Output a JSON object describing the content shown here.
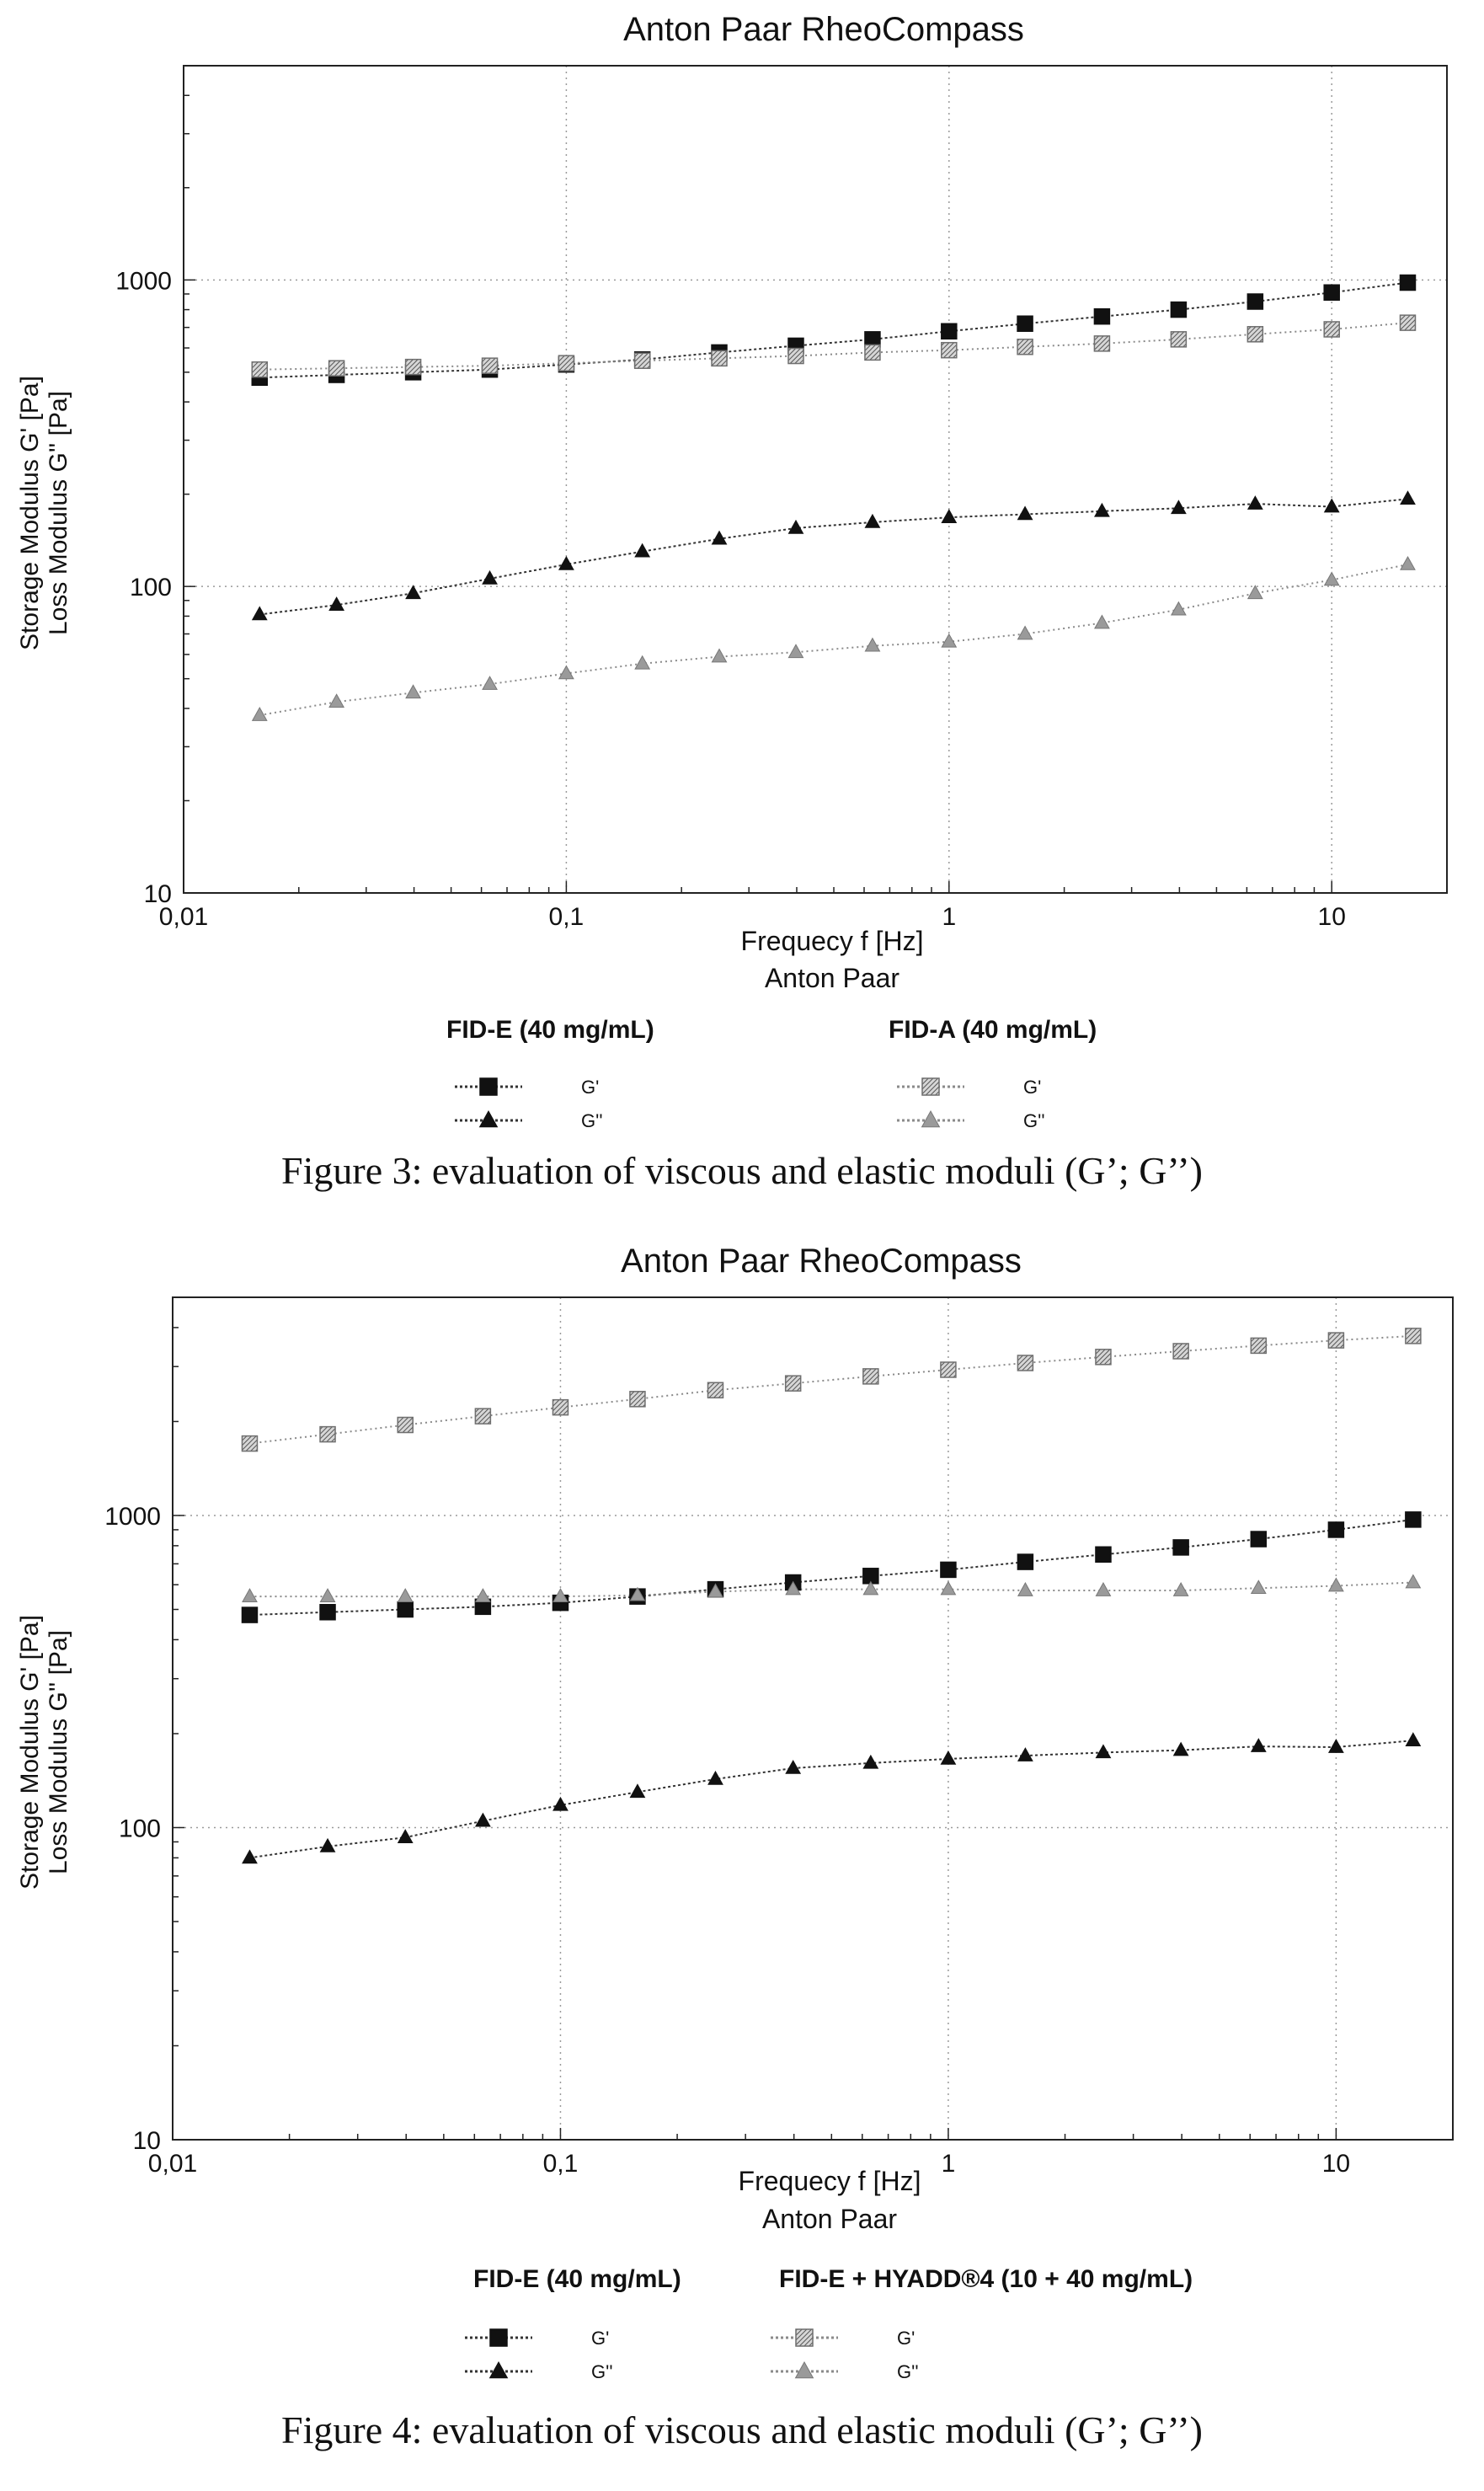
{
  "colors": {
    "fid_e": "#111111",
    "fid_a": "#8a8a8a",
    "fid_e_hyadd": "#8a8a8a",
    "grid": "#9a9a9a"
  },
  "chart_data": [
    {
      "type": "line",
      "title": "Anton Paar RheoCompass",
      "xlabel": "Frequecy f [Hz]",
      "xsublabel": "Anton Paar",
      "ylabel_line1": "Storage Modulus G' [Pa]",
      "ylabel_line2": "Loss Modulus G'' [Pa]",
      "xscale": "log",
      "yscale": "log",
      "xlim": [
        0.01,
        20
      ],
      "ylim": [
        10,
        5000
      ],
      "xticks": [
        {
          "value": 0.01,
          "label": "0,01"
        },
        {
          "value": 0.1,
          "label": "0,1"
        },
        {
          "value": 1,
          "label": "1"
        },
        {
          "value": 10,
          "label": "10"
        }
      ],
      "yticks": [
        {
          "value": 10,
          "label": "10"
        },
        {
          "value": 100,
          "label": "100"
        },
        {
          "value": 1000,
          "label": "1000"
        }
      ],
      "grid": true,
      "x": [
        0.0158,
        0.0251,
        0.0398,
        0.0631,
        0.1,
        0.158,
        0.251,
        0.398,
        0.631,
        1.0,
        1.58,
        2.51,
        3.98,
        6.31,
        10.0,
        15.8
      ],
      "series": [
        {
          "id": "fid-e-storage",
          "marker": "square",
          "style": "solid",
          "values": [
            480,
            490,
            500,
            510,
            530,
            550,
            580,
            610,
            640,
            680,
            720,
            760,
            800,
            850,
            910,
            980
          ]
        },
        {
          "id": "fid-e-loss",
          "marker": "triangle",
          "style": "solid",
          "values": [
            81,
            87,
            95,
            106,
            118,
            130,
            143,
            155,
            162,
            168,
            172,
            176,
            180,
            186,
            182,
            193
          ]
        },
        {
          "id": "fid-a-storage",
          "marker": "square",
          "style": "hatched",
          "values": [
            510,
            515,
            520,
            525,
            535,
            545,
            555,
            565,
            580,
            590,
            605,
            620,
            640,
            665,
            690,
            725
          ]
        },
        {
          "id": "fid-a-loss",
          "marker": "triangle",
          "style": "hatched",
          "values": [
            38,
            42,
            45,
            48,
            52,
            56,
            59,
            61,
            64,
            66,
            70,
            76,
            84,
            95,
            105,
            118
          ]
        }
      ],
      "legend": {
        "groups": [
          {
            "title": "FID-E (40 mg/mL)",
            "entries": [
              {
                "series": "fid-e-storage",
                "label": "G'"
              },
              {
                "series": "fid-e-loss",
                "label": "G''"
              }
            ]
          },
          {
            "title": "FID-A (40 mg/mL)",
            "entries": [
              {
                "series": "fid-a-storage",
                "label": "G'"
              },
              {
                "series": "fid-a-loss",
                "label": "G''"
              }
            ]
          }
        ]
      },
      "caption": "Figure 3: evaluation of viscous and elastic moduli (G’; G’’)"
    },
    {
      "type": "line",
      "title": "Anton Paar RheoCompass",
      "xlabel": "Frequecy f [Hz]",
      "xsublabel": "Anton Paar",
      "ylabel_line1": "Storage Modulus G' [Pa]",
      "ylabel_line2": "Loss Modulus G'' [Pa]",
      "xscale": "log",
      "yscale": "log",
      "xlim": [
        0.01,
        20
      ],
      "ylim": [
        10,
        5000
      ],
      "xticks": [
        {
          "value": 0.01,
          "label": "0,01"
        },
        {
          "value": 0.1,
          "label": "0,1"
        },
        {
          "value": 1,
          "label": "1"
        },
        {
          "value": 10,
          "label": "10"
        }
      ],
      "yticks": [
        {
          "value": 10,
          "label": "10"
        },
        {
          "value": 100,
          "label": "100"
        },
        {
          "value": 1000,
          "label": "1000"
        }
      ],
      "grid": true,
      "x": [
        0.0158,
        0.0251,
        0.0398,
        0.0631,
        0.1,
        0.158,
        0.251,
        0.398,
        0.631,
        1.0,
        1.58,
        2.51,
        3.98,
        6.31,
        10.0,
        15.8
      ],
      "series": [
        {
          "id": "fid-e-storage",
          "marker": "square",
          "style": "solid",
          "values": [
            480,
            490,
            500,
            510,
            525,
            550,
            580,
            610,
            640,
            670,
            710,
            750,
            790,
            840,
            900,
            970
          ]
        },
        {
          "id": "fid-e-loss",
          "marker": "triangle",
          "style": "solid",
          "values": [
            80,
            87,
            93,
            105,
            118,
            130,
            143,
            155,
            161,
            166,
            170,
            174,
            177,
            182,
            181,
            190
          ]
        },
        {
          "id": "fid-e-hyadd-storage",
          "marker": "square",
          "style": "hatched",
          "values": [
            1700,
            1820,
            1950,
            2080,
            2220,
            2360,
            2520,
            2650,
            2790,
            2930,
            3080,
            3220,
            3360,
            3500,
            3640,
            3760
          ]
        },
        {
          "id": "fid-e-hyadd-loss",
          "marker": "triangle",
          "style": "hatched",
          "values": [
            550,
            550,
            550,
            550,
            550,
            555,
            570,
            580,
            580,
            580,
            575,
            575,
            575,
            585,
            595,
            610
          ]
        }
      ],
      "legend": {
        "groups": [
          {
            "title": "FID-E (40 mg/mL)",
            "entries": [
              {
                "series": "fid-e-storage",
                "label": "G'"
              },
              {
                "series": "fid-e-loss",
                "label": "G''"
              }
            ]
          },
          {
            "title": "FID-E + HYADD®4 (10 + 40 mg/mL)",
            "entries": [
              {
                "series": "fid-e-hyadd-storage",
                "label": "G'"
              },
              {
                "series": "fid-e-hyadd-loss",
                "label": "G''"
              }
            ]
          }
        ]
      },
      "caption": "Figure 4: evaluation of viscous and elastic moduli (G’; G’’)"
    }
  ]
}
